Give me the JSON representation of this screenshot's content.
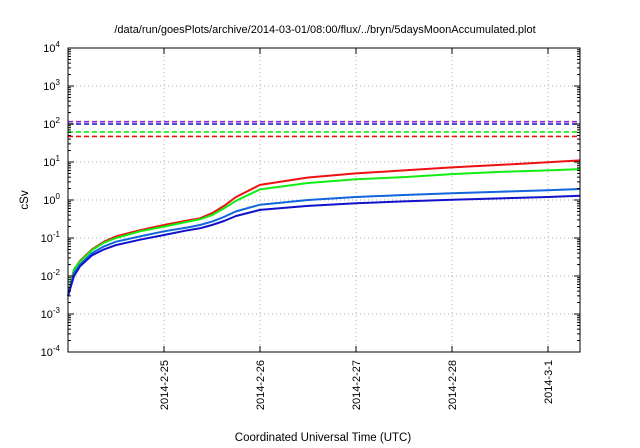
{
  "chart_data": {
    "type": "line",
    "title": "/data/run/goesPlots/archive/2014-03-01/08:00/flux/../bryn/5daysMoonAccumulated.plot",
    "xlabel": "Coordinated Universal Time (UTC)",
    "ylabel": "cSv",
    "yscale": "log",
    "grid": true,
    "legend": "none",
    "xlim": [
      "2014-02-24T00:00",
      "2014-03-01T08:00"
    ],
    "ylim": [
      0.0001,
      10000
    ],
    "x_ticks": [
      {
        "label": "2014-2-25",
        "x": "2014-02-25T00:00"
      },
      {
        "label": "2014-2-26",
        "x": "2014-02-26T00:00"
      },
      {
        "label": "2014-2-27",
        "x": "2014-02-27T00:00"
      },
      {
        "label": "2014-2-28",
        "x": "2014-02-28T00:00"
      },
      {
        "label": "2014-3-1",
        "x": "2014-03-01T00:00"
      }
    ],
    "y_ticks": [
      {
        "base": "10",
        "exp": "-4",
        "value": 0.0001
      },
      {
        "base": "10",
        "exp": "-3",
        "value": 0.001
      },
      {
        "base": "10",
        "exp": "-2",
        "value": 0.01
      },
      {
        "base": "10",
        "exp": "-1",
        "value": 0.1
      },
      {
        "base": "10",
        "exp": "0",
        "value": 1
      },
      {
        "base": "10",
        "exp": "1",
        "value": 10
      },
      {
        "base": "10",
        "exp": "2",
        "value": 100
      },
      {
        "base": "10",
        "exp": "3",
        "value": 1000
      },
      {
        "base": "10",
        "exp": "4",
        "value": 10000
      }
    ],
    "series": [
      {
        "color": "#ee1111",
        "dash": false,
        "points": [
          [
            "2014-02-24T00:00",
            0.003
          ],
          [
            "2014-02-24T01:30",
            0.015
          ],
          [
            "2014-02-24T03:00",
            0.025
          ],
          [
            "2014-02-24T06:00",
            0.05
          ],
          [
            "2014-02-24T09:00",
            0.08
          ],
          [
            "2014-02-24T12:00",
            0.11
          ],
          [
            "2014-02-24T18:00",
            0.16
          ],
          [
            "2014-02-25T00:00",
            0.22
          ],
          [
            "2014-02-25T06:00",
            0.29
          ],
          [
            "2014-02-25T09:00",
            0.33
          ],
          [
            "2014-02-25T12:00",
            0.45
          ],
          [
            "2014-02-25T15:00",
            0.7
          ],
          [
            "2014-02-25T18:00",
            1.2
          ],
          [
            "2014-02-26T00:00",
            2.5
          ],
          [
            "2014-02-26T12:00",
            3.9
          ],
          [
            "2014-02-27T00:00",
            5.0
          ],
          [
            "2014-02-27T12:00",
            6.0
          ],
          [
            "2014-02-28T00:00",
            7.2
          ],
          [
            "2014-02-28T12:00",
            8.4
          ],
          [
            "2014-03-01T00:00",
            9.8
          ],
          [
            "2014-03-01T08:00",
            11
          ]
        ]
      },
      {
        "color": "#11ee11",
        "dash": false,
        "points": [
          [
            "2014-02-24T00:00",
            0.003
          ],
          [
            "2014-02-24T01:30",
            0.015
          ],
          [
            "2014-02-24T03:00",
            0.024
          ],
          [
            "2014-02-24T06:00",
            0.048
          ],
          [
            "2014-02-24T09:00",
            0.075
          ],
          [
            "2014-02-24T12:00",
            0.1
          ],
          [
            "2014-02-24T18:00",
            0.15
          ],
          [
            "2014-02-25T00:00",
            0.2
          ],
          [
            "2014-02-25T06:00",
            0.27
          ],
          [
            "2014-02-25T09:00",
            0.31
          ],
          [
            "2014-02-25T12:00",
            0.4
          ],
          [
            "2014-02-25T15:00",
            0.6
          ],
          [
            "2014-02-25T18:00",
            0.95
          ],
          [
            "2014-02-26T00:00",
            1.9
          ],
          [
            "2014-02-26T12:00",
            2.8
          ],
          [
            "2014-02-27T00:00",
            3.5
          ],
          [
            "2014-02-27T12:00",
            4.0
          ],
          [
            "2014-02-28T00:00",
            4.8
          ],
          [
            "2014-02-28T12:00",
            5.5
          ],
          [
            "2014-03-01T00:00",
            6.0
          ],
          [
            "2014-03-01T08:00",
            6.5
          ]
        ]
      },
      {
        "color": "#1166dd",
        "dash": false,
        "points": [
          [
            "2014-02-24T00:00",
            0.003
          ],
          [
            "2014-02-24T01:30",
            0.012
          ],
          [
            "2014-02-24T03:00",
            0.02
          ],
          [
            "2014-02-24T06:00",
            0.04
          ],
          [
            "2014-02-24T09:00",
            0.06
          ],
          [
            "2014-02-24T12:00",
            0.08
          ],
          [
            "2014-02-24T18:00",
            0.11
          ],
          [
            "2014-02-25T00:00",
            0.15
          ],
          [
            "2014-02-25T06:00",
            0.19
          ],
          [
            "2014-02-25T09:00",
            0.22
          ],
          [
            "2014-02-25T12:00",
            0.27
          ],
          [
            "2014-02-25T15:00",
            0.36
          ],
          [
            "2014-02-25T18:00",
            0.5
          ],
          [
            "2014-02-26T00:00",
            0.75
          ],
          [
            "2014-02-26T12:00",
            1.0
          ],
          [
            "2014-02-27T00:00",
            1.2
          ],
          [
            "2014-02-27T12:00",
            1.35
          ],
          [
            "2014-02-28T00:00",
            1.5
          ],
          [
            "2014-02-28T12:00",
            1.65
          ],
          [
            "2014-03-01T00:00",
            1.8
          ],
          [
            "2014-03-01T08:00",
            1.95
          ]
        ]
      },
      {
        "color": "#1111cc",
        "dash": false,
        "points": [
          [
            "2014-02-24T00:00",
            0.003
          ],
          [
            "2014-02-24T01:30",
            0.01
          ],
          [
            "2014-02-24T03:00",
            0.018
          ],
          [
            "2014-02-24T06:00",
            0.035
          ],
          [
            "2014-02-24T09:00",
            0.05
          ],
          [
            "2014-02-24T12:00",
            0.065
          ],
          [
            "2014-02-24T18:00",
            0.09
          ],
          [
            "2014-02-25T00:00",
            0.12
          ],
          [
            "2014-02-25T06:00",
            0.16
          ],
          [
            "2014-02-25T09:00",
            0.18
          ],
          [
            "2014-02-25T12:00",
            0.22
          ],
          [
            "2014-02-25T15:00",
            0.28
          ],
          [
            "2014-02-25T18:00",
            0.38
          ],
          [
            "2014-02-26T00:00",
            0.55
          ],
          [
            "2014-02-26T12:00",
            0.7
          ],
          [
            "2014-02-27T00:00",
            0.82
          ],
          [
            "2014-02-27T12:00",
            0.92
          ],
          [
            "2014-02-28T00:00",
            1.02
          ],
          [
            "2014-02-28T12:00",
            1.1
          ],
          [
            "2014-03-01T00:00",
            1.2
          ],
          [
            "2014-03-01T08:00",
            1.3
          ]
        ]
      },
      {
        "color": "#9922cc",
        "dash": true,
        "value": 115
      },
      {
        "color": "#1111cc",
        "dash": true,
        "value": 100
      },
      {
        "color": "#11ee11",
        "dash": true,
        "value": 62
      },
      {
        "color": "#ee1111",
        "dash": true,
        "value": 47
      }
    ]
  }
}
